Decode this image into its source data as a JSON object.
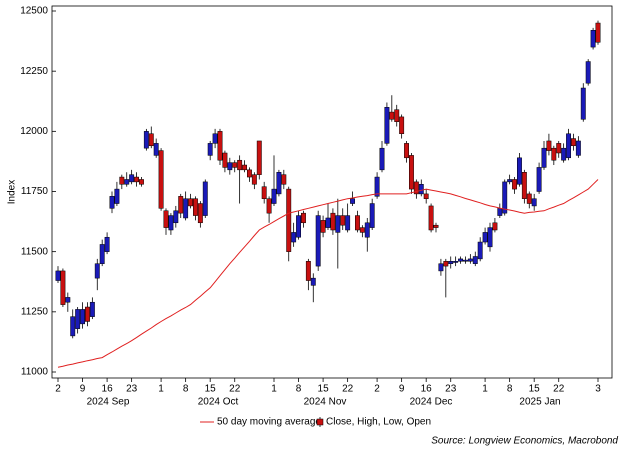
{
  "chart_data": {
    "type": "candlestick",
    "y_label": "Index",
    "source": "Source: Longview Economics, Macrobond",
    "ylim": [
      11000,
      12500
    ],
    "yticks": [
      11000,
      11250,
      11500,
      11750,
      12000,
      12250,
      12500
    ],
    "month_labels": [
      "2024 Sep",
      "2024 Oct",
      "2024 Nov",
      "2024 Dec",
      "2025 Jan"
    ],
    "categories": [
      "2",
      null,
      null,
      null,
      null,
      "9",
      null,
      null,
      null,
      null,
      "16",
      null,
      null,
      null,
      null,
      "23",
      null,
      null,
      null,
      null,
      null,
      "1",
      null,
      null,
      null,
      null,
      "8",
      null,
      null,
      null,
      null,
      "15",
      null,
      null,
      null,
      null,
      "22",
      null,
      null,
      null,
      null,
      null,
      null,
      null,
      "1",
      null,
      null,
      null,
      null,
      "8",
      null,
      null,
      null,
      null,
      "15",
      null,
      null,
      null,
      null,
      "22",
      null,
      null,
      null,
      null,
      null,
      "2",
      null,
      null,
      null,
      null,
      "9",
      null,
      null,
      null,
      null,
      "16",
      null,
      null,
      null,
      null,
      "23",
      null,
      null,
      null,
      null,
      null,
      null,
      "1",
      null,
      null,
      null,
      null,
      "8",
      null,
      null,
      null,
      null,
      "15",
      null,
      null,
      null,
      null,
      "22",
      null,
      null,
      null,
      null,
      null,
      null,
      null,
      "3"
    ],
    "series": [
      {
        "name": "50 day moving average",
        "color": "#e02020",
        "values": [
          11020,
          11024,
          11029,
          11033,
          11038,
          11042,
          11047,
          11051,
          11056,
          11060,
          11072,
          11083,
          11095,
          11107,
          11118,
          11130,
          11143,
          11157,
          11170,
          11183,
          11197,
          11210,
          11222,
          11233,
          11245,
          11257,
          11268,
          11280,
          11298,
          11315,
          11333,
          11350,
          11375,
          11400,
          11425,
          11450,
          11473,
          11497,
          11520,
          11543,
          11567,
          11590,
          11602,
          11613,
          11625,
          11637,
          11648,
          11660,
          11665,
          11670,
          11675,
          11680,
          11685,
          11690,
          11695,
          11700,
          11705,
          11710,
          11715,
          11720,
          11723,
          11727,
          11730,
          11733,
          11737,
          11740,
          11740,
          11740,
          11740,
          11740,
          11740,
          11740,
          11745,
          11750,
          11755,
          11760,
          11756,
          11752,
          11748,
          11744,
          11740,
          11734,
          11728,
          11721,
          11715,
          11709,
          11703,
          11696,
          11690,
          11686,
          11681,
          11677,
          11673,
          11669,
          11664,
          11660,
          11663,
          11665,
          11668,
          11670,
          11678,
          11685,
          11693,
          11700,
          11712,
          11724,
          11736,
          11748,
          11760,
          11780,
          11800
        ]
      },
      {
        "name": "Close, High, Low, Open",
        "up_color": "#1a1ab8",
        "down_color": "#c81010",
        "values": [
          [
            11420,
            11440,
            11370,
            11380
          ],
          [
            11280,
            11430,
            11270,
            11420
          ],
          [
            11310,
            11330,
            11250,
            11290
          ],
          [
            11230,
            11260,
            11140,
            11150
          ],
          [
            11260,
            11270,
            11160,
            11180
          ],
          [
            11260,
            11290,
            11180,
            11200
          ],
          [
            11210,
            11290,
            11190,
            11270
          ],
          [
            11290,
            11310,
            11220,
            11230
          ],
          [
            11450,
            11470,
            11340,
            11390
          ],
          [
            11530,
            11550,
            11440,
            11450
          ],
          [
            11560,
            11580,
            11490,
            11500
          ],
          [
            11730,
            11750,
            11660,
            11680
          ],
          [
            11760,
            11790,
            11690,
            11700
          ],
          [
            11780,
            11820,
            11760,
            11810
          ],
          [
            11800,
            11830,
            11770,
            11780
          ],
          [
            11820,
            11840,
            11780,
            11790
          ],
          [
            11790,
            11830,
            11770,
            11810
          ],
          [
            11780,
            11810,
            11770,
            11800
          ],
          [
            12000,
            12010,
            11920,
            11930
          ],
          [
            11940,
            12020,
            11930,
            11990
          ],
          [
            11950,
            11970,
            11890,
            11900
          ],
          [
            11680,
            11930,
            11670,
            11920
          ],
          [
            11600,
            11680,
            11570,
            11670
          ],
          [
            11650,
            11660,
            11570,
            11590
          ],
          [
            11670,
            11690,
            11600,
            11620
          ],
          [
            11660,
            11740,
            11640,
            11730
          ],
          [
            11720,
            11750,
            11630,
            11640
          ],
          [
            11690,
            11740,
            11680,
            11720
          ],
          [
            11650,
            11730,
            11630,
            11720
          ],
          [
            11620,
            11710,
            11600,
            11700
          ],
          [
            11790,
            11800,
            11640,
            11650
          ],
          [
            11950,
            11960,
            11880,
            11900
          ],
          [
            11990,
            12010,
            11930,
            11950
          ],
          [
            11880,
            12010,
            11860,
            12000
          ],
          [
            11850,
            11920,
            11830,
            11910
          ],
          [
            11870,
            11890,
            11820,
            11840
          ],
          [
            11850,
            11880,
            11830,
            11870
          ],
          [
            11840,
            11900,
            11700,
            11880
          ],
          [
            11840,
            11880,
            11830,
            11860
          ],
          [
            11810,
            11850,
            11790,
            11840
          ],
          [
            11780,
            11830,
            11760,
            11820
          ],
          [
            11820,
            11960,
            11800,
            11960
          ],
          [
            11720,
            11790,
            11700,
            11770
          ],
          [
            11660,
            11730,
            11620,
            11720
          ],
          [
            11760,
            11900,
            11690,
            11700
          ],
          [
            11830,
            11840,
            11730,
            11740
          ],
          [
            11780,
            11840,
            11760,
            11820
          ],
          [
            11500,
            11770,
            11460,
            11760
          ],
          [
            11580,
            11620,
            11520,
            11540
          ],
          [
            11650,
            11670,
            11550,
            11560
          ],
          [
            11620,
            11670,
            11600,
            11660
          ],
          [
            11380,
            11470,
            11340,
            11460
          ],
          [
            11390,
            11410,
            11290,
            11360
          ],
          [
            11650,
            11670,
            11420,
            11440
          ],
          [
            11580,
            11650,
            11560,
            11630
          ],
          [
            11640,
            11700,
            11590,
            11600
          ],
          [
            11590,
            11680,
            11570,
            11660
          ],
          [
            11650,
            11720,
            11430,
            11580
          ],
          [
            11610,
            11680,
            11590,
            11650
          ],
          [
            11650,
            11700,
            11580,
            11590
          ],
          [
            11720,
            11750,
            11690,
            11700
          ],
          [
            11590,
            11670,
            11580,
            11650
          ],
          [
            11580,
            11610,
            11560,
            11600
          ],
          [
            11620,
            11640,
            11500,
            11560
          ],
          [
            11700,
            11720,
            11590,
            11600
          ],
          [
            11810,
            11830,
            11720,
            11730
          ],
          [
            11930,
            11960,
            11830,
            11840
          ],
          [
            12100,
            12120,
            11940,
            11950
          ],
          [
            12050,
            12150,
            12040,
            12080
          ],
          [
            12040,
            12110,
            12020,
            12090
          ],
          [
            11990,
            12070,
            11970,
            12060
          ],
          [
            11890,
            11960,
            11870,
            11950
          ],
          [
            11760,
            11910,
            11740,
            11900
          ],
          [
            11740,
            11800,
            11720,
            11790
          ],
          [
            11780,
            11800,
            11730,
            11740
          ],
          [
            11720,
            11760,
            11700,
            11740
          ],
          [
            11590,
            11700,
            11580,
            11690
          ],
          [
            11600,
            11620,
            11580,
            11610
          ],
          [
            11450,
            11470,
            11400,
            11420
          ],
          [
            11440,
            11470,
            11310,
            11460
          ],
          [
            11460,
            11480,
            11430,
            11450
          ],
          [
            11460,
            11480,
            11440,
            11455
          ],
          [
            11470,
            11480,
            11450,
            11460
          ],
          [
            11465,
            11480,
            11450,
            11460
          ],
          [
            11470,
            11490,
            11450,
            11460
          ],
          [
            11480,
            11500,
            11440,
            11450
          ],
          [
            11540,
            11560,
            11460,
            11470
          ],
          [
            11580,
            11600,
            11530,
            11540
          ],
          [
            11600,
            11620,
            11500,
            11520
          ],
          [
            11590,
            11640,
            11580,
            11620
          ],
          [
            11680,
            11700,
            11640,
            11650
          ],
          [
            11790,
            11800,
            11650,
            11660
          ],
          [
            11800,
            11820,
            11780,
            11790
          ],
          [
            11760,
            11810,
            11740,
            11800
          ],
          [
            11890,
            11910,
            11770,
            11780
          ],
          [
            11720,
            11840,
            11700,
            11830
          ],
          [
            11700,
            11750,
            11680,
            11740
          ],
          [
            11720,
            11740,
            11670,
            11690
          ],
          [
            11850,
            11870,
            11740,
            11750
          ],
          [
            11930,
            11960,
            11840,
            11850
          ],
          [
            11920,
            11990,
            11900,
            11960
          ],
          [
            11880,
            11940,
            11860,
            11930
          ],
          [
            11910,
            11960,
            11890,
            11950
          ],
          [
            11930,
            11950,
            11870,
            11880
          ],
          [
            11990,
            12010,
            11880,
            11890
          ],
          [
            11940,
            11990,
            11920,
            11970
          ],
          [
            11960,
            11980,
            11890,
            11900
          ],
          [
            12180,
            12200,
            12040,
            12050
          ],
          [
            12290,
            12300,
            12190,
            12200
          ],
          [
            12420,
            12430,
            12340,
            12350
          ],
          [
            12370,
            12460,
            12360,
            12450
          ]
        ]
      }
    ]
  }
}
